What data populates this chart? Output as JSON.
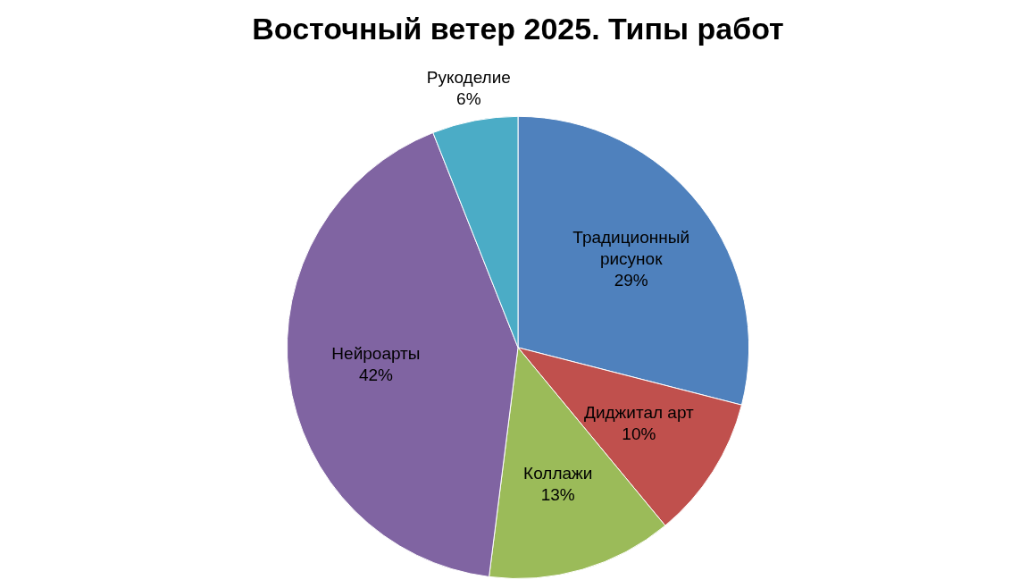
{
  "chart_data": {
    "type": "pie",
    "title": "Восточный ветер 2025. Типы работ",
    "categories": [
      "Традиционный рисунок",
      "Диджитал арт",
      "Коллажи",
      "Нейроарты",
      "Рукоделие"
    ],
    "values": [
      29,
      10,
      13,
      42,
      6
    ],
    "colors": [
      "#4f81bd",
      "#c0504d",
      "#9bbb59",
      "#8064a2",
      "#4bacc6"
    ],
    "value_labels": [
      "29%",
      "10%",
      "13%",
      "42%",
      "6%"
    ]
  }
}
